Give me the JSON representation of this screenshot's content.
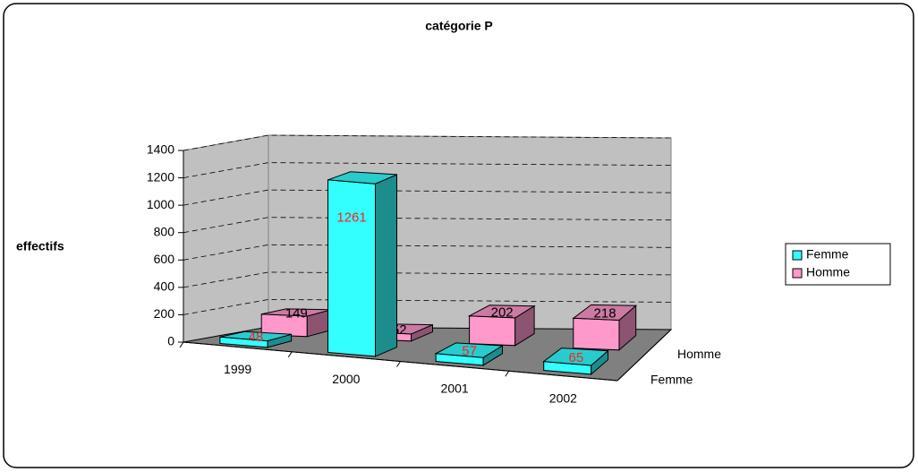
{
  "chart_data": {
    "type": "bar3d",
    "title": "catégorie P",
    "y_label": "effectifs",
    "categories": [
      "1999",
      "2000",
      "2001",
      "2002"
    ],
    "series": [
      {
        "name": "Femme",
        "color": "#33ffff",
        "values": [
          48,
          1261,
          57,
          65
        ]
      },
      {
        "name": "Homme",
        "color": "#ff99cc",
        "values": [
          149,
          52,
          202,
          218
        ]
      }
    ],
    "ylim": [
      0,
      1400
    ],
    "yticks": [
      0,
      200,
      400,
      600,
      800,
      1000,
      1200,
      1400
    ],
    "grid": true,
    "legend": "right"
  }
}
